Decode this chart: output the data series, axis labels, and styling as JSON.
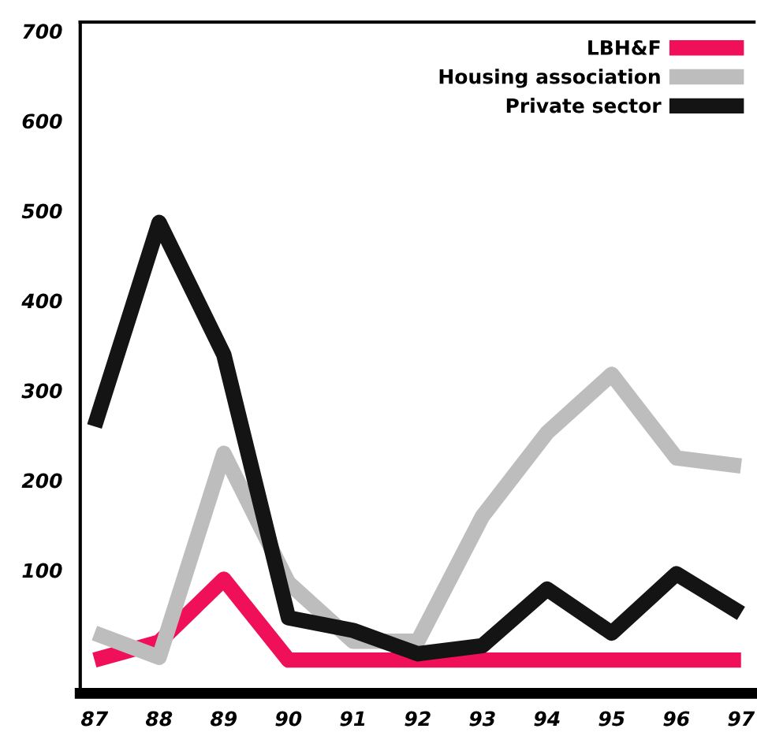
{
  "chart_data": {
    "type": "line",
    "x": [
      87,
      88,
      89,
      90,
      91,
      92,
      93,
      94,
      95,
      96,
      97
    ],
    "xlim": [
      86.78,
      97.2
    ],
    "xticks": [
      87,
      88,
      89,
      90,
      91,
      92,
      93,
      94,
      95,
      96,
      97
    ],
    "ylim": [
      -37,
      710
    ],
    "yticks": [
      100,
      200,
      300,
      400,
      500,
      600,
      700
    ],
    "grid": false,
    "legend": "top right",
    "marker": "none",
    "line_style": "solid",
    "series": [
      {
        "name": "LBH&F",
        "color": "#f0105a",
        "values": [
          0,
          20,
          90,
          0,
          0,
          0,
          0,
          0,
          0,
          0,
          0
        ]
      },
      {
        "name": "Housing association",
        "color": "#bdbdbd",
        "values": [
          30,
          3,
          230,
          86,
          21,
          21,
          160,
          253,
          318,
          225,
          216
        ]
      },
      {
        "name": "Private sector",
        "color": "#141414",
        "values": [
          260,
          487,
          340,
          47,
          33,
          7,
          16,
          79,
          30,
          96,
          52
        ]
      }
    ]
  }
}
